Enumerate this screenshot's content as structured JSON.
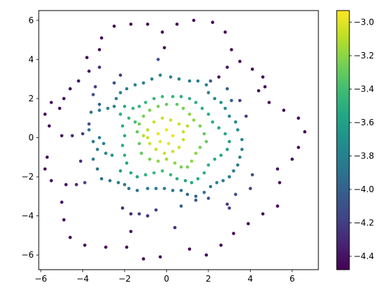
{
  "chart_data": {
    "type": "scatter",
    "title": "",
    "xlabel": "",
    "ylabel": "",
    "xlim": [
      -6.1,
      7.25
    ],
    "ylim": [
      -6.75,
      6.5
    ],
    "xticks": [
      -6,
      -4,
      -2,
      0,
      2,
      4,
      6
    ],
    "yticks": [
      -6,
      -4,
      -2,
      0,
      2,
      4,
      6
    ],
    "xtick_labels": [
      "−6",
      "−4",
      "−2",
      "0",
      "2",
      "4",
      "6"
    ],
    "ytick_labels": [
      "−6",
      "−4",
      "−2",
      "0",
      "2",
      "4",
      "6"
    ],
    "grid": false,
    "colormap": "viridis",
    "colormap_stops": [
      "#440154",
      "#482475",
      "#414487",
      "#355f8d",
      "#2a788e",
      "#21908d",
      "#22a884",
      "#42be71",
      "#7ad151",
      "#bddf26",
      "#fde725"
    ],
    "colorbar": {
      "vmin": -4.48,
      "vmax": -2.93,
      "ticks": [
        -4.4,
        -4.2,
        -4.0,
        -3.8,
        -3.6,
        -3.4,
        -3.2,
        -3.0
      ],
      "tick_labels": [
        "−4.4",
        "−4.2",
        "−4.0",
        "−3.8",
        "−3.6",
        "−3.4",
        "−3.2",
        "−3.0"
      ]
    },
    "series": [
      {
        "points": [
          [
            -5.8,
            1.2,
            -4.45
          ],
          [
            -5.6,
            0.6,
            -4.45
          ],
          [
            -5.5,
            1.8,
            -4.4
          ],
          [
            -5.1,
            1.5,
            -4.45
          ],
          [
            -5.8,
            -1.6,
            -4.45
          ],
          [
            -5.7,
            -1.0,
            -4.45
          ],
          [
            -5.5,
            -2.2,
            -4.4
          ],
          [
            -5.0,
            -3.3,
            -4.4
          ],
          [
            -4.9,
            -4.2,
            -4.45
          ],
          [
            -4.6,
            -5.1,
            -4.45
          ],
          [
            -3.9,
            -5.5,
            -4.45
          ],
          [
            -2.9,
            -5.6,
            -4.45
          ],
          [
            -1.9,
            -5.6,
            -4.45
          ],
          [
            -1.1,
            -6.2,
            -4.45
          ],
          [
            -0.3,
            -6.1,
            -4.45
          ],
          [
            1.1,
            -5.7,
            -4.45
          ],
          [
            1.9,
            -6.0,
            -4.45
          ],
          [
            2.6,
            -5.5,
            -4.45
          ],
          [
            3.2,
            -4.9,
            -4.45
          ],
          [
            3.9,
            -4.4,
            -4.45
          ],
          [
            4.6,
            -3.9,
            -4.45
          ],
          [
            5.3,
            -3.5,
            -4.45
          ],
          [
            5.4,
            -2.3,
            -4.45
          ],
          [
            5.3,
            -1.6,
            -4.4
          ],
          [
            6.0,
            -1.1,
            -4.45
          ],
          [
            6.3,
            -0.5,
            -4.45
          ],
          [
            6.6,
            0.3,
            -4.45
          ],
          [
            6.3,
            1.0,
            -4.45
          ],
          [
            5.6,
            1.4,
            -4.45
          ],
          [
            4.9,
            1.8,
            -4.45
          ],
          [
            4.4,
            2.4,
            -4.45
          ],
          [
            4.7,
            2.6,
            -4.45
          ],
          [
            4.6,
            3.1,
            -4.45
          ],
          [
            4.1,
            3.5,
            -4.45
          ],
          [
            3.5,
            3.9,
            -4.45
          ],
          [
            2.9,
            3.6,
            -4.4
          ],
          [
            2.5,
            3.1,
            -4.4
          ],
          [
            3.1,
            4.5,
            -4.45
          ],
          [
            2.8,
            5.4,
            -4.45
          ],
          [
            2.2,
            5.9,
            -4.45
          ],
          [
            1.3,
            6.0,
            -4.45
          ],
          [
            0.5,
            5.8,
            -4.45
          ],
          [
            -0.2,
            5.4,
            -4.45
          ],
          [
            -0.1,
            4.6,
            -4.45
          ],
          [
            -0.9,
            5.8,
            -4.45
          ],
          [
            -1.7,
            5.8,
            -4.45
          ],
          [
            -2.5,
            5.7,
            -4.45
          ],
          [
            -3.1,
            5.1,
            -4.45
          ],
          [
            -3.2,
            4.5,
            -4.45
          ],
          [
            -3.8,
            4.1,
            -4.45
          ],
          [
            -3.7,
            3.4,
            -4.4
          ],
          [
            -4.2,
            2.9,
            -4.45
          ],
          [
            -4.6,
            2.5,
            -4.45
          ],
          [
            -4.9,
            2.0,
            -4.45
          ],
          [
            -3.2,
            3.6,
            -4.3
          ],
          [
            -5.0,
            0.1,
            -4.4
          ],
          [
            -4.5,
            0.1,
            -4.3
          ],
          [
            -4.1,
            -1.2,
            -4.3
          ],
          [
            -4.3,
            -2.4,
            -4.3
          ],
          [
            -4.8,
            -2.4,
            -4.4
          ],
          [
            -3.9,
            -2.3,
            -4.2
          ],
          [
            -2.1,
            -3.6,
            -4.3
          ],
          [
            -1.7,
            -4.8,
            -4.4
          ],
          [
            -1.7,
            -3.9,
            -4.3
          ],
          [
            -1.3,
            -3.9,
            -4.2
          ],
          [
            -0.9,
            -4.0,
            -4.3
          ],
          [
            -0.5,
            -3.7,
            -4.2
          ],
          [
            0.4,
            -4.6,
            -4.3
          ],
          [
            0.7,
            -3.5,
            -4.0
          ],
          [
            1.4,
            -3.2,
            -4.1
          ],
          [
            2.0,
            -3.1,
            -4.1
          ],
          [
            2.9,
            -3.4,
            -4.2
          ],
          [
            3.0,
            -3.6,
            -4.2
          ],
          [
            3.3,
            -2.9,
            -4.1
          ],
          [
            4.1,
            -1.9,
            -4.1
          ],
          [
            4.0,
            -2.6,
            -4.2
          ],
          [
            3.8,
            1.1,
            -4.2
          ],
          [
            3.5,
            1.9,
            -4.2
          ],
          [
            3.1,
            1.9,
            -4.0
          ],
          [
            2.9,
            2.5,
            -4.0
          ],
          [
            2.1,
            2.9,
            -4.0
          ],
          [
            -0.4,
            4.0,
            -4.1
          ],
          [
            -2.5,
            2.8,
            -4.1
          ],
          [
            -2.2,
            3.2,
            -4.2
          ],
          [
            -3.4,
            2.6,
            -4.2
          ],
          [
            -3.5,
            2.2,
            -4.1
          ],
          [
            -3.2,
            1.7,
            -4.0
          ],
          [
            -4.0,
            0.2,
            -4.2
          ],
          [
            -3.7,
            0.7,
            -4.1
          ]
        ]
      },
      {
        "points": [
          [
            -3.6,
            1.3,
            -3.9
          ],
          [
            -3.2,
            1.4,
            -3.85
          ],
          [
            -2.8,
            1.5,
            -3.8
          ],
          [
            -2.5,
            1.6,
            -3.8
          ],
          [
            -3.7,
            0.4,
            -3.9
          ],
          [
            -3.5,
            -0.2,
            -3.85
          ],
          [
            -3.3,
            -0.6,
            -3.8
          ],
          [
            -2.9,
            -0.8,
            -3.75
          ],
          [
            -2.6,
            -0.9,
            -3.7
          ],
          [
            -3.2,
            0.0,
            -3.85
          ],
          [
            -3.0,
            -0.3,
            -3.8
          ],
          [
            -3.5,
            -1.1,
            -3.85
          ],
          [
            -3.3,
            -1.6,
            -3.9
          ],
          [
            -3.1,
            -2.1,
            -3.95
          ],
          [
            -2.7,
            -2.2,
            -3.9
          ],
          [
            -2.3,
            -2.3,
            -3.85
          ],
          [
            -2.0,
            -2.4,
            -3.85
          ],
          [
            -1.8,
            -2.6,
            -3.9
          ],
          [
            -1.4,
            -2.7,
            -3.9
          ],
          [
            -0.9,
            -2.6,
            -3.85
          ],
          [
            -0.5,
            -2.6,
            -3.85
          ],
          [
            -0.1,
            -2.6,
            -3.85
          ],
          [
            0.3,
            -2.7,
            -3.9
          ],
          [
            0.7,
            -2.7,
            -3.9
          ],
          [
            1.0,
            -2.9,
            -3.95
          ],
          [
            1.4,
            -3.0,
            -3.95
          ],
          [
            1.8,
            -2.8,
            -3.9
          ],
          [
            2.1,
            -2.5,
            -3.85
          ],
          [
            2.4,
            -2.3,
            -3.8
          ],
          [
            2.7,
            -2.2,
            -3.85
          ],
          [
            3.0,
            -2.0,
            -3.85
          ],
          [
            3.2,
            -1.7,
            -3.85
          ],
          [
            3.4,
            -1.4,
            -3.85
          ],
          [
            3.5,
            -1.0,
            -3.8
          ],
          [
            3.6,
            -0.6,
            -3.8
          ],
          [
            3.6,
            -0.1,
            -3.75
          ],
          [
            3.4,
            0.4,
            -3.75
          ],
          [
            3.3,
            0.8,
            -3.8
          ],
          [
            3.0,
            1.1,
            -3.75
          ],
          [
            2.8,
            1.5,
            -3.75
          ],
          [
            2.6,
            1.8,
            -3.7
          ],
          [
            2.3,
            2.0,
            -3.75
          ],
          [
            2.0,
            2.3,
            -3.8
          ],
          [
            1.9,
            2.7,
            -3.8
          ],
          [
            1.5,
            2.9,
            -3.85
          ],
          [
            1.1,
            2.9,
            -3.85
          ],
          [
            0.6,
            3.0,
            -3.8
          ],
          [
            0.2,
            3.1,
            -3.8
          ],
          [
            -0.3,
            3.2,
            -3.8
          ],
          [
            -0.7,
            3.0,
            -3.8
          ],
          [
            -1.1,
            2.8,
            -3.8
          ],
          [
            -1.5,
            2.7,
            -3.8
          ],
          [
            -1.9,
            2.5,
            -3.8
          ],
          [
            -2.2,
            2.3,
            -3.8
          ],
          [
            -2.4,
            2.0,
            -3.8
          ]
        ]
      },
      {
        "points": [
          [
            -2.2,
            1.2,
            -3.5
          ],
          [
            -1.8,
            1.0,
            -3.45
          ],
          [
            -1.5,
            0.8,
            -3.4
          ],
          [
            -2.1,
            0.6,
            -3.5
          ],
          [
            -2.0,
            0.1,
            -3.5
          ],
          [
            -2.1,
            -0.4,
            -3.5
          ],
          [
            -2.0,
            -0.9,
            -3.5
          ],
          [
            -1.9,
            -1.3,
            -3.55
          ],
          [
            -2.2,
            -1.7,
            -3.6
          ],
          [
            -1.7,
            -1.8,
            -3.55
          ],
          [
            -1.4,
            -2.0,
            -3.55
          ],
          [
            -1.0,
            -1.9,
            -3.5
          ],
          [
            -0.6,
            -1.8,
            -3.45
          ],
          [
            -0.2,
            -1.7,
            -3.4
          ],
          [
            0.2,
            -1.9,
            -3.45
          ],
          [
            0.5,
            -2.1,
            -3.5
          ],
          [
            0.9,
            -2.2,
            -3.55
          ],
          [
            1.2,
            -2.3,
            -3.55
          ],
          [
            1.5,
            -2.1,
            -3.5
          ],
          [
            1.8,
            -1.8,
            -3.5
          ],
          [
            2.0,
            -1.4,
            -3.5
          ],
          [
            2.3,
            -1.1,
            -3.5
          ],
          [
            2.6,
            -0.9,
            -3.55
          ],
          [
            2.9,
            -0.6,
            -3.6
          ],
          [
            3.0,
            -0.2,
            -3.6
          ],
          [
            2.8,
            0.2,
            -3.55
          ],
          [
            2.5,
            0.5,
            -3.55
          ],
          [
            2.2,
            0.8,
            -3.5
          ],
          [
            2.0,
            1.2,
            -3.5
          ],
          [
            1.7,
            1.5,
            -3.5
          ],
          [
            1.4,
            1.8,
            -3.5
          ],
          [
            1.1,
            2.0,
            -3.5
          ],
          [
            0.7,
            2.1,
            -3.5
          ],
          [
            0.3,
            2.1,
            -3.45
          ],
          [
            -0.2,
            2.1,
            -3.45
          ],
          [
            -0.6,
            2.0,
            -3.45
          ],
          [
            -1.0,
            1.8,
            -3.45
          ],
          [
            -1.3,
            1.6,
            -3.45
          ],
          [
            -1.6,
            1.5,
            -3.45
          ],
          [
            -2.0,
            1.6,
            -3.5
          ]
        ]
      },
      {
        "points": [
          [
            -1.4,
            0.3,
            -3.3
          ],
          [
            -1.3,
            -0.3,
            -3.3
          ],
          [
            -1.2,
            -0.8,
            -3.3
          ],
          [
            -0.8,
            -1.1,
            -3.25
          ],
          [
            -0.4,
            -1.2,
            -3.2
          ],
          [
            0.0,
            -1.1,
            -3.15
          ],
          [
            0.4,
            -1.3,
            -3.2
          ],
          [
            0.7,
            -1.5,
            -3.25
          ],
          [
            1.0,
            -1.5,
            -3.25
          ],
          [
            1.2,
            -1.2,
            -3.2
          ],
          [
            1.4,
            -0.8,
            -3.2
          ],
          [
            1.6,
            -0.5,
            -3.25
          ],
          [
            1.9,
            -0.2,
            -3.3
          ],
          [
            1.8,
            0.2,
            -3.3
          ],
          [
            1.6,
            0.6,
            -3.25
          ],
          [
            1.3,
            0.9,
            -3.2
          ],
          [
            1.1,
            1.2,
            -3.2
          ],
          [
            0.8,
            1.5,
            -3.25
          ],
          [
            0.5,
            1.7,
            -3.3
          ],
          [
            0.0,
            1.7,
            -3.3
          ],
          [
            -0.4,
            1.6,
            -3.25
          ],
          [
            -0.8,
            1.4,
            -3.25
          ],
          [
            -1.1,
            1.1,
            -3.25
          ],
          [
            -1.3,
            0.7,
            -3.25
          ]
        ]
      },
      {
        "points": [
          [
            -0.9,
            0.4,
            -3.1
          ],
          [
            -0.6,
            0.8,
            -3.05
          ],
          [
            -0.2,
            1.0,
            -3.05
          ],
          [
            0.2,
            0.9,
            -3.05
          ],
          [
            0.6,
            0.7,
            -3.05
          ],
          [
            0.8,
            0.3,
            -3.05
          ],
          [
            0.8,
            -0.1,
            -3.05
          ],
          [
            0.6,
            -0.5,
            -3.05
          ],
          [
            0.3,
            -0.7,
            -3.05
          ],
          [
            -0.1,
            -0.8,
            -3.05
          ],
          [
            -0.5,
            -0.6,
            -3.05
          ],
          [
            -0.8,
            -0.3,
            -3.05
          ],
          [
            -0.9,
            0.0,
            -3.05
          ],
          [
            -0.4,
            0.2,
            -2.98
          ],
          [
            0.0,
            0.4,
            -2.97
          ],
          [
            0.3,
            0.1,
            -2.97
          ],
          [
            0.1,
            -0.3,
            -2.98
          ],
          [
            -0.3,
            -0.2,
            -2.98
          ],
          [
            -1.1,
            0.1,
            -3.1
          ],
          [
            1.0,
            0.6,
            -3.1
          ]
        ]
      }
    ]
  }
}
